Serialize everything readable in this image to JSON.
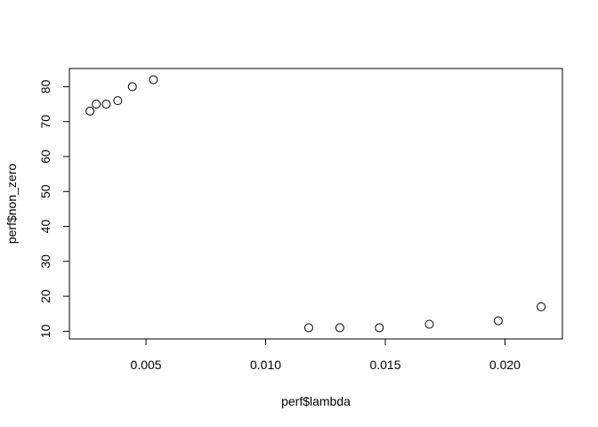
{
  "chart_data": {
    "type": "scatter",
    "title": "",
    "xlabel": "perf$lambda",
    "ylabel": "perf$non_zero",
    "xlim": [
      0.0018,
      0.0224
    ],
    "ylim": [
      7.8,
      85.2
    ],
    "xticks": [
      0.005,
      0.01,
      0.015,
      0.02
    ],
    "xtick_labels": [
      "0.005",
      "0.010",
      "0.015",
      "0.020"
    ],
    "yticks": [
      10,
      20,
      30,
      40,
      50,
      60,
      70,
      80
    ],
    "ytick_labels": [
      "10",
      "20",
      "30",
      "40",
      "50",
      "60",
      "70",
      "80"
    ],
    "grid": false,
    "legend": "none",
    "marker": "open-circle",
    "series": [
      {
        "x": [
          0.00266,
          0.00292,
          0.00334,
          0.00382,
          0.00443,
          0.00531,
          0.0118,
          0.0131,
          0.01475,
          0.01684,
          0.01972,
          0.02151
        ],
        "y": [
          73,
          75,
          75,
          76,
          80,
          82,
          11,
          11,
          11,
          12,
          13,
          17
        ]
      }
    ]
  },
  "colors": {
    "axis": "#000000",
    "marker_stroke": "#000000",
    "background": "#ffffff"
  }
}
